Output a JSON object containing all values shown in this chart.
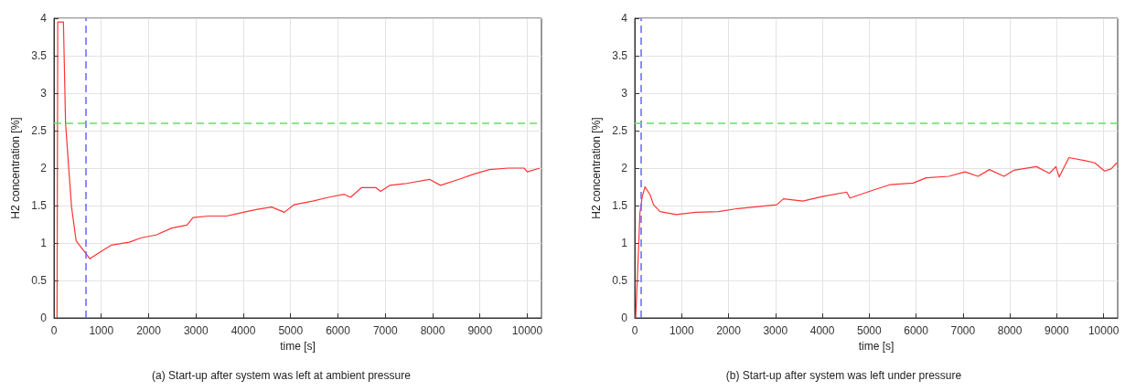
{
  "chart_data": [
    {
      "type": "line",
      "title": "(a) Start-up after system was left at ambient pressure",
      "xlabel": "time [s]",
      "ylabel": "H2 concentration [%]",
      "x": [
        65,
        80,
        120,
        200,
        245,
        310,
        372,
        468,
        565,
        661,
        757,
        950,
        1207,
        1592,
        1849,
        2170,
        2490,
        2811,
        2939,
        3260,
        3645,
        4000,
        4300,
        4600,
        4867,
        5067,
        5467,
        5800,
        6133,
        6267,
        6500,
        6800,
        6900,
        7100,
        7400,
        7933,
        8167,
        8600,
        8867,
        9200,
        9600,
        9933,
        10000,
        10267
      ],
      "series": [
        {
          "color": "#ff3333",
          "values": [
            0,
            3.95,
            3.95,
            3.95,
            2.6,
            2.02,
            1.48,
            1.03,
            0.95,
            0.87,
            0.79,
            0.87,
            0.97,
            1.01,
            1.07,
            1.11,
            1.2,
            1.24,
            1.34,
            1.36,
            1.36,
            1.41,
            1.45,
            1.48,
            1.41,
            1.51,
            1.56,
            1.61,
            1.65,
            1.61,
            1.74,
            1.74,
            1.69,
            1.77,
            1.79,
            1.85,
            1.77,
            1.86,
            1.92,
            1.98,
            2.0,
            2.0,
            1.95,
            2.0
          ]
        }
      ],
      "xlim": [
        0,
        10300
      ],
      "xticks": [
        0,
        1000,
        2000,
        3000,
        4000,
        5000,
        6000,
        7000,
        8000,
        9000,
        10000
      ],
      "ylim": [
        0,
        4
      ],
      "yticks": [
        0,
        0.5,
        1,
        1.5,
        2,
        2.5,
        3,
        3.5,
        4
      ],
      "ref_lines": [
        {
          "axis": "x",
          "value": 670,
          "color": "#6666ff",
          "line_style": "dashed"
        },
        {
          "axis": "y",
          "value": 2.6,
          "color": "#66dd66",
          "line_style": "dashed"
        }
      ],
      "grid": true,
      "marker": "none",
      "line_style": "solid"
    },
    {
      "type": "line",
      "title": "(b) Start-up after system was left under pressure",
      "xlabel": "time [s]",
      "ylabel": "H2 concentration [%]",
      "x": [
        20,
        70,
        110,
        160,
        220,
        330,
        400,
        540,
        886,
        1300,
        1785,
        2200,
        3030,
        3170,
        3585,
        4000,
        4520,
        4590,
        5107,
        5453,
        5938,
        6215,
        6700,
        7045,
        7322,
        7564,
        7875,
        8083,
        8567,
        8844,
        8983,
        9052,
        9260,
        9606,
        9813,
        10021,
        10159,
        10284
      ],
      "series": [
        {
          "color": "#ff3333",
          "values": [
            0,
            0.75,
            1.4,
            1.62,
            1.75,
            1.64,
            1.51,
            1.42,
            1.38,
            1.41,
            1.42,
            1.46,
            1.51,
            1.59,
            1.56,
            1.62,
            1.68,
            1.6,
            1.71,
            1.78,
            1.8,
            1.87,
            1.89,
            1.95,
            1.89,
            1.98,
            1.89,
            1.97,
            2.02,
            1.93,
            2.02,
            1.88,
            2.14,
            2.1,
            2.07,
            1.96,
            1.99,
            2.07
          ]
        }
      ],
      "xlim": [
        0,
        10300
      ],
      "xticks": [
        0,
        1000,
        2000,
        3000,
        4000,
        5000,
        6000,
        7000,
        8000,
        9000,
        10000
      ],
      "ylim": [
        0,
        4
      ],
      "yticks": [
        0,
        0.5,
        1,
        1.5,
        2,
        2.5,
        3,
        3.5,
        4
      ],
      "ref_lines": [
        {
          "axis": "x",
          "value": 140,
          "color": "#6666ff",
          "line_style": "dashed"
        },
        {
          "axis": "y",
          "value": 2.6,
          "color": "#66dd66",
          "line_style": "dashed"
        }
      ],
      "grid": true,
      "marker": "none",
      "line_style": "solid"
    }
  ]
}
